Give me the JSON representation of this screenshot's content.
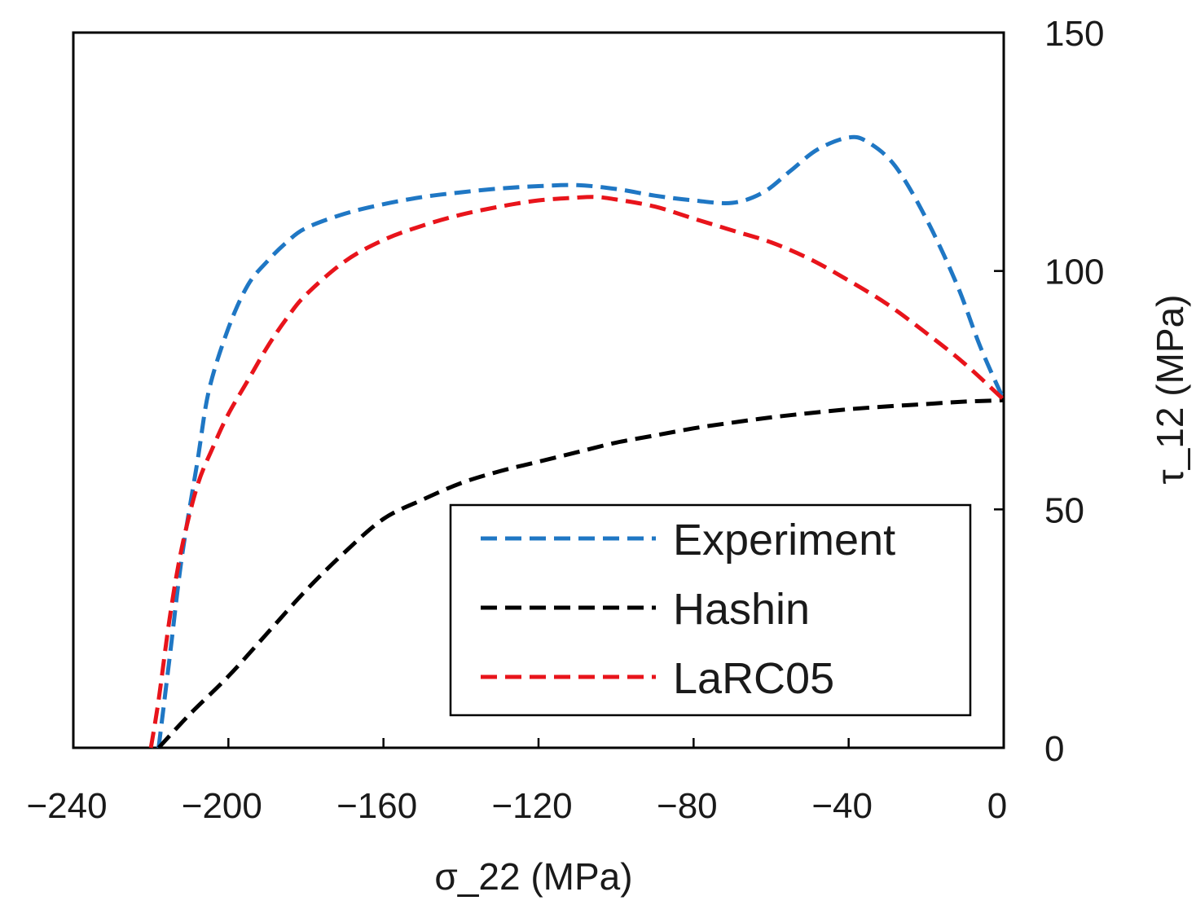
{
  "chart_data": {
    "type": "line",
    "xlabel": "σ_22 (MPa)",
    "ylabel": "τ_12 (MPa)",
    "xlim": [
      -240,
      0
    ],
    "ylim": [
      0,
      150
    ],
    "x_ticks": [
      -240,
      -200,
      -160,
      -120,
      -80,
      -40,
      0
    ],
    "y_ticks": [
      0,
      50,
      100,
      150
    ],
    "y_axis_side": "right",
    "grid": false,
    "legend_position": "bottom-right",
    "series": [
      {
        "name": "Experiment",
        "color": "#1f77c4",
        "points": [
          [
            -218,
            0
          ],
          [
            -215,
            20
          ],
          [
            -212,
            40
          ],
          [
            -208,
            60
          ],
          [
            -205,
            75
          ],
          [
            -200,
            88
          ],
          [
            -195,
            97
          ],
          [
            -190,
            102
          ],
          [
            -185,
            106
          ],
          [
            -180,
            109
          ],
          [
            -170,
            112
          ],
          [
            -160,
            114
          ],
          [
            -150,
            115.5
          ],
          [
            -140,
            116.5
          ],
          [
            -130,
            117.3
          ],
          [
            -120,
            117.8
          ],
          [
            -110,
            118
          ],
          [
            -100,
            117.2
          ],
          [
            -90,
            115.8
          ],
          [
            -80,
            114.8
          ],
          [
            -70,
            114.3
          ],
          [
            -62,
            116.5
          ],
          [
            -55,
            121
          ],
          [
            -48,
            125.5
          ],
          [
            -40,
            128
          ],
          [
            -35,
            127
          ],
          [
            -28,
            122
          ],
          [
            -20,
            111
          ],
          [
            -12,
            97
          ],
          [
            -6,
            84
          ],
          [
            0,
            73
          ]
        ]
      },
      {
        "name": "Hashin",
        "color": "#000000",
        "points": [
          [
            -218,
            0
          ],
          [
            -210,
            7
          ],
          [
            -200,
            15
          ],
          [
            -190,
            24
          ],
          [
            -180,
            33
          ],
          [
            -170,
            41
          ],
          [
            -160,
            48
          ],
          [
            -150,
            52
          ],
          [
            -140,
            55.5
          ],
          [
            -130,
            58
          ],
          [
            -120,
            60
          ],
          [
            -110,
            62
          ],
          [
            -100,
            64
          ],
          [
            -90,
            65.5
          ],
          [
            -80,
            67
          ],
          [
            -70,
            68.2
          ],
          [
            -60,
            69.3
          ],
          [
            -50,
            70.2
          ],
          [
            -40,
            71
          ],
          [
            -30,
            71.6
          ],
          [
            -20,
            72.1
          ],
          [
            -10,
            72.6
          ],
          [
            0,
            72.9
          ]
        ]
      },
      {
        "name": "LaRC05",
        "color": "#e8141b",
        "points": [
          [
            -220,
            0
          ],
          [
            -218,
            10
          ],
          [
            -215,
            28
          ],
          [
            -212,
            42
          ],
          [
            -208,
            55
          ],
          [
            -204,
            63
          ],
          [
            -200,
            70
          ],
          [
            -195,
            77
          ],
          [
            -190,
            84
          ],
          [
            -185,
            90
          ],
          [
            -180,
            95
          ],
          [
            -170,
            102
          ],
          [
            -160,
            106.5
          ],
          [
            -150,
            109.5
          ],
          [
            -140,
            111.8
          ],
          [
            -130,
            113.5
          ],
          [
            -120,
            114.8
          ],
          [
            -110,
            115.4
          ],
          [
            -105,
            115.5
          ],
          [
            -100,
            115
          ],
          [
            -90,
            113.5
          ],
          [
            -80,
            111
          ],
          [
            -70,
            108.5
          ],
          [
            -60,
            106
          ],
          [
            -50,
            102.5
          ],
          [
            -40,
            98
          ],
          [
            -30,
            93
          ],
          [
            -20,
            87
          ],
          [
            -10,
            80.5
          ],
          [
            0,
            73
          ]
        ]
      }
    ]
  }
}
